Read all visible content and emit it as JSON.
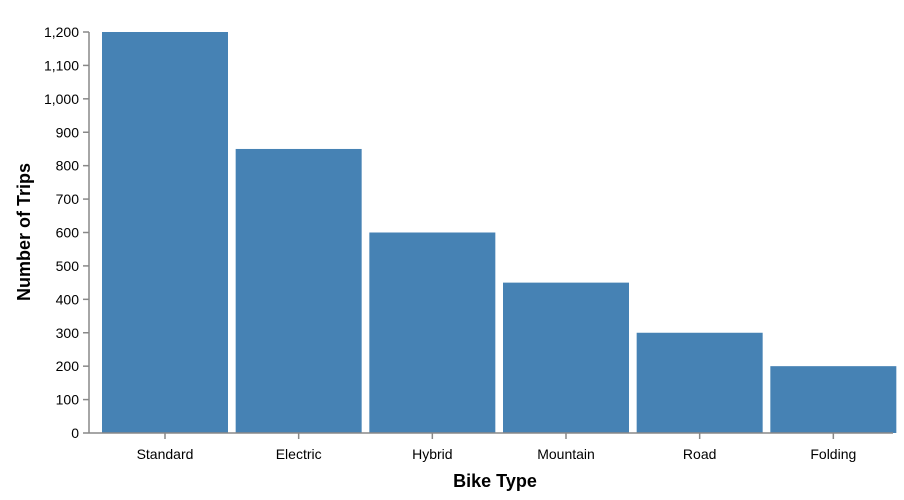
{
  "chart_data": {
    "type": "bar",
    "categories": [
      "Standard",
      "Electric",
      "Hybrid",
      "Mountain",
      "Road",
      "Folding"
    ],
    "values": [
      1200,
      850,
      600,
      450,
      300,
      200
    ],
    "xlabel": "Bike Type",
    "ylabel": "Number of Trips",
    "ylim": [
      0,
      1200
    ],
    "yticks": [
      0,
      100,
      200,
      300,
      400,
      500,
      600,
      700,
      800,
      900,
      1000,
      1100,
      1200
    ],
    "ytick_labels": [
      "0",
      "100",
      "200",
      "300",
      "400",
      "500",
      "600",
      "700",
      "800",
      "900",
      "1,000",
      "1,100",
      "1,200"
    ],
    "bar_color": "#4682b4",
    "axis_color": "#888888",
    "grid": false,
    "legend": false
  }
}
